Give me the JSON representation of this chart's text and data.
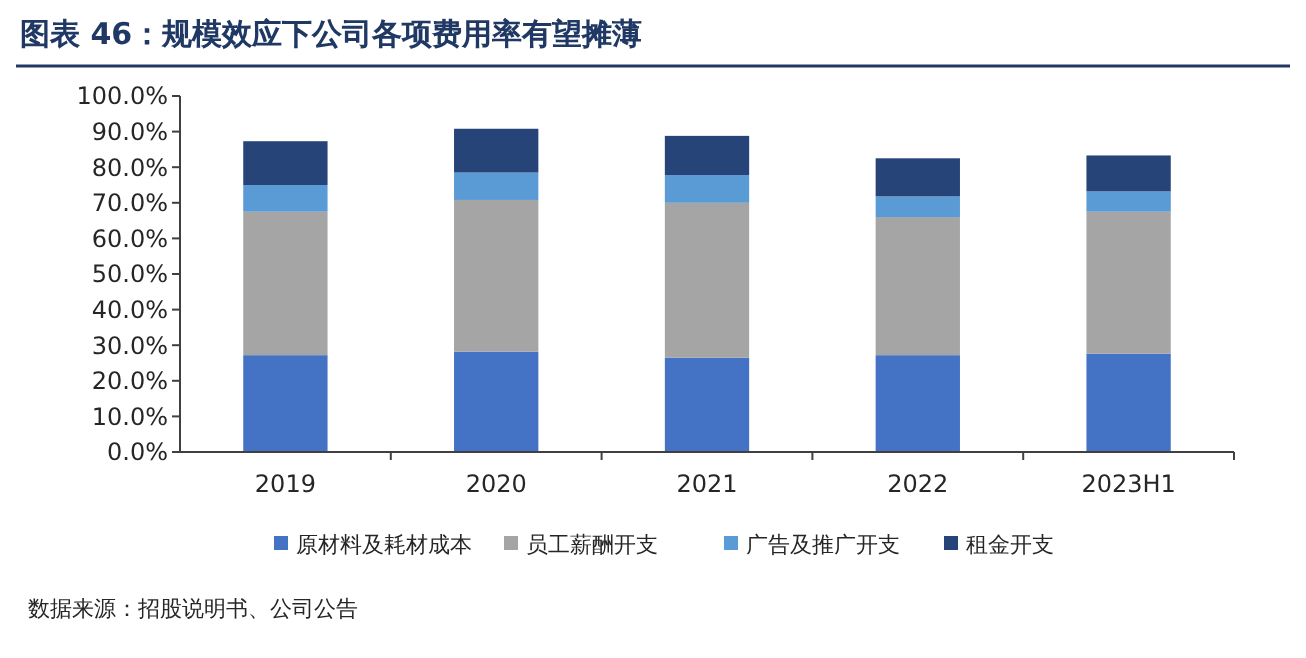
{
  "chart_data": {
    "type": "bar",
    "stacked": true,
    "title": "图表 46：规模效应下公司各项费用率有望摊薄",
    "categories": [
      "2019",
      "2020",
      "2021",
      "2022",
      "2023H1"
    ],
    "series": [
      {
        "name": "原材料及耗材成本",
        "color": "#4472c4",
        "values": [
          27.2,
          28.2,
          26.5,
          27.2,
          27.6
        ]
      },
      {
        "name": "员工薪酬开支",
        "color": "#a5a5a5",
        "values": [
          40.3,
          42.6,
          43.5,
          38.8,
          39.9
        ]
      },
      {
        "name": "广告及推广开支",
        "color": "#5b9bd5",
        "values": [
          7.5,
          7.7,
          7.8,
          5.8,
          5.7
        ]
      },
      {
        "name": "租金开支",
        "color": "#264478",
        "values": [
          12.3,
          12.3,
          11.0,
          10.7,
          10.1
        ]
      }
    ],
    "ylim": [
      0,
      100
    ],
    "yticks": [
      {
        "value": 0,
        "label": "0.0%"
      },
      {
        "value": 10,
        "label": "10.0%"
      },
      {
        "value": 20,
        "label": "20.0%"
      },
      {
        "value": 30,
        "label": "30.0%"
      },
      {
        "value": 40,
        "label": "40.0%"
      },
      {
        "value": 50,
        "label": "50.0%"
      },
      {
        "value": 60,
        "label": "60.0%"
      },
      {
        "value": 70,
        "label": "70.0%"
      },
      {
        "value": 80,
        "label": "80.0%"
      },
      {
        "value": 90,
        "label": "90.0%"
      },
      {
        "value": 100,
        "label": "100.0%"
      }
    ],
    "grid": false,
    "legend": "bottom",
    "annotations": [
      "数据来源：招股说明书、公司公告"
    ]
  }
}
